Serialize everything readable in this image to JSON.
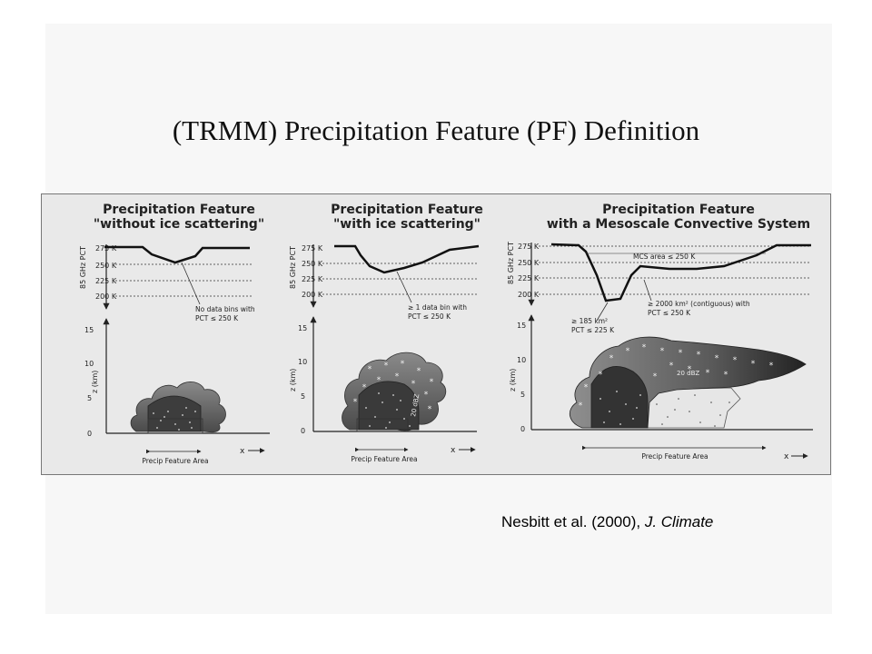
{
  "slide": {
    "title": "(TRMM) Precipitation Feature (PF) Definition",
    "citation_authors": "Nesbitt et al. (2000), ",
    "citation_journal": "J. Climate"
  },
  "figure": {
    "panels": [
      {
        "title_line1": "Precipitation Feature",
        "title_line2": "\"without ice scattering\"",
        "pct_ticks": [
          "275 K",
          "250 K",
          "225 K",
          "200 K"
        ],
        "pct_axis_label": "85 GHz PCT",
        "z_ticks": [
          "15",
          "10",
          "5",
          "0"
        ],
        "z_axis_label": "z (km)",
        "x_label": "x",
        "area_label": "Precip Feature Area",
        "annotations": [
          "No data bins with",
          "PCT ≤ 250 K"
        ]
      },
      {
        "title_line1": "Precipitation Feature",
        "title_line2": "\"with ice scattering\"",
        "pct_ticks": [
          "275 K",
          "250 K",
          "225 K",
          "200 K"
        ],
        "pct_axis_label": "85 GHz PCT",
        "z_ticks": [
          "15",
          "10",
          "5",
          "0"
        ],
        "z_axis_label": "z (km)",
        "x_label": "x",
        "area_label": "Precip Feature Area",
        "annotations": [
          "≥ 1 data bin with",
          "PCT ≤ 250 K"
        ],
        "inner_label": "20 dBZ"
      },
      {
        "title_line1": "Precipitation Feature",
        "title_line2": "with a Mesoscale Convective System",
        "pct_ticks": [
          "275 K",
          "250 K",
          "225 K",
          "200 K"
        ],
        "pct_axis_label": "85 GHz PCT",
        "z_ticks": [
          "15",
          "10",
          "5",
          "0"
        ],
        "z_axis_label": "z (km)",
        "x_label": "x",
        "area_label": "Precip Feature Area",
        "mcs_area_label": "MCS area ≤ 250 K",
        "annotation_left": [
          "≥ 185 km²",
          "PCT ≤ 225 K"
        ],
        "annotation_right": [
          "≥ 2000 km² (contiguous) with",
          "PCT ≤ 250 K"
        ],
        "inner_label": "20 dBZ"
      }
    ]
  }
}
